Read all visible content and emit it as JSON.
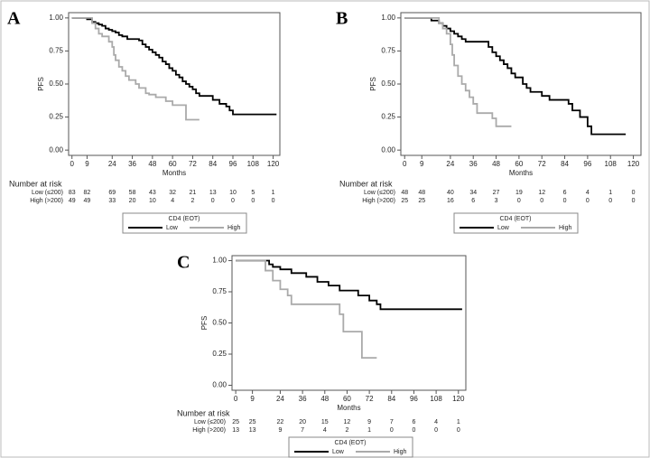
{
  "chart_data": [
    {
      "type": "line",
      "step": true,
      "panel_label": "A",
      "ylabel": "PFS",
      "xlabel": "Months",
      "xlim": [
        -2,
        124
      ],
      "ylim": [
        -0.04,
        1.04
      ],
      "xticks": [
        0,
        9,
        24,
        36,
        48,
        60,
        72,
        84,
        96,
        108,
        120
      ],
      "yticks": [
        {
          "value": 0,
          "label": "0.00"
        },
        {
          "value": 0.25,
          "label": "0.25"
        },
        {
          "value": 0.5,
          "label": "0.50"
        },
        {
          "value": 0.75,
          "label": "0.75"
        },
        {
          "value": 1,
          "label": "1.00"
        }
      ],
      "legend_title": "CD4 (EOT)",
      "series": [
        {
          "name": "Low",
          "color": "#000000",
          "x": [
            0,
            9,
            12,
            14,
            16,
            18,
            20,
            22,
            24,
            26,
            28,
            30,
            33,
            40,
            42,
            44,
            46,
            48,
            50,
            52,
            54,
            56,
            58,
            60,
            62,
            64,
            66,
            68,
            70,
            72,
            74,
            76,
            84,
            88,
            92,
            94,
            96,
            122
          ],
          "values": [
            1,
            0.99,
            0.97,
            0.96,
            0.95,
            0.94,
            0.92,
            0.91,
            0.9,
            0.89,
            0.87,
            0.86,
            0.84,
            0.83,
            0.8,
            0.78,
            0.76,
            0.74,
            0.72,
            0.7,
            0.67,
            0.65,
            0.62,
            0.6,
            0.57,
            0.55,
            0.52,
            0.5,
            0.48,
            0.46,
            0.43,
            0.41,
            0.38,
            0.35,
            0.33,
            0.3,
            0.27,
            0.27
          ]
        },
        {
          "name": "High",
          "color": "#aaaaaa",
          "x": [
            0,
            12,
            14,
            16,
            18,
            22,
            24,
            25,
            26,
            28,
            30,
            32,
            34,
            38,
            40,
            44,
            46,
            50,
            56,
            60,
            66,
            68,
            76
          ],
          "values": [
            1,
            0.96,
            0.92,
            0.88,
            0.86,
            0.82,
            0.78,
            0.72,
            0.68,
            0.63,
            0.6,
            0.56,
            0.53,
            0.5,
            0.47,
            0.43,
            0.42,
            0.4,
            0.37,
            0.34,
            0.34,
            0.23,
            0.23
          ]
        }
      ],
      "risk_table": {
        "title": "Number at risk",
        "rows": [
          {
            "label": "Low (≤200)",
            "values": [
              83,
              82,
              69,
              58,
              43,
              32,
              21,
              13,
              10,
              5,
              1
            ]
          },
          {
            "label": "High (>200)",
            "values": [
              49,
              49,
              33,
              20,
              10,
              4,
              2,
              0,
              0,
              0,
              0
            ]
          }
        ]
      }
    },
    {
      "type": "line",
      "step": true,
      "panel_label": "B",
      "ylabel": "PFS",
      "xlabel": "Months",
      "xlim": [
        -2,
        124
      ],
      "ylim": [
        -0.04,
        1.04
      ],
      "xticks": [
        0,
        9,
        24,
        36,
        48,
        60,
        72,
        84,
        96,
        108,
        120
      ],
      "yticks": [
        {
          "value": 0,
          "label": "0.00"
        },
        {
          "value": 0.25,
          "label": "0.25"
        },
        {
          "value": 0.5,
          "label": "0.50"
        },
        {
          "value": 0.75,
          "label": "0.75"
        },
        {
          "value": 1,
          "label": "1.00"
        }
      ],
      "legend_title": "CD4 (EOT)",
      "series": [
        {
          "name": "Low",
          "color": "#000000",
          "x": [
            0,
            14,
            18,
            20,
            22,
            24,
            26,
            28,
            30,
            32,
            44,
            46,
            48,
            50,
            52,
            54,
            56,
            58,
            62,
            64,
            66,
            72,
            76,
            86,
            88,
            92,
            96,
            98,
            116
          ],
          "values": [
            1,
            0.98,
            0.96,
            0.94,
            0.92,
            0.9,
            0.88,
            0.86,
            0.84,
            0.82,
            0.78,
            0.74,
            0.71,
            0.68,
            0.65,
            0.62,
            0.58,
            0.55,
            0.5,
            0.47,
            0.44,
            0.41,
            0.38,
            0.35,
            0.3,
            0.25,
            0.18,
            0.12,
            0.12
          ]
        },
        {
          "name": "High",
          "color": "#aaaaaa",
          "x": [
            0,
            18,
            20,
            22,
            24,
            25,
            26,
            28,
            30,
            32,
            34,
            36,
            38,
            46,
            48,
            56
          ],
          "values": [
            1,
            0.96,
            0.92,
            0.88,
            0.8,
            0.72,
            0.64,
            0.56,
            0.5,
            0.45,
            0.4,
            0.35,
            0.28,
            0.24,
            0.18,
            0.18
          ]
        }
      ],
      "risk_table": {
        "title": "Number at risk",
        "rows": [
          {
            "label": "Low (≤200)",
            "values": [
              48,
              48,
              40,
              34,
              27,
              19,
              12,
              6,
              4,
              1,
              0
            ]
          },
          {
            "label": "High (>200)",
            "values": [
              25,
              25,
              16,
              6,
              3,
              0,
              0,
              0,
              0,
              0,
              0
            ]
          }
        ]
      }
    },
    {
      "type": "line",
      "step": true,
      "panel_label": "C",
      "ylabel": "PFS",
      "xlabel": "Months",
      "xlim": [
        -2,
        124
      ],
      "ylim": [
        -0.04,
        1.04
      ],
      "xticks": [
        0,
        9,
        24,
        36,
        48,
        60,
        72,
        84,
        96,
        108,
        120
      ],
      "yticks": [
        {
          "value": 0,
          "label": "0.00"
        },
        {
          "value": 0.25,
          "label": "0.25"
        },
        {
          "value": 0.5,
          "label": "0.50"
        },
        {
          "value": 0.75,
          "label": "0.75"
        },
        {
          "value": 1,
          "label": "1.00"
        }
      ],
      "legend_title": "CD4 (EOT)",
      "series": [
        {
          "name": "Low",
          "color": "#000000",
          "x": [
            0,
            18,
            20,
            24,
            30,
            38,
            44,
            50,
            56,
            66,
            72,
            76,
            78,
            122
          ],
          "values": [
            1,
            0.97,
            0.95,
            0.93,
            0.9,
            0.87,
            0.83,
            0.8,
            0.76,
            0.72,
            0.68,
            0.65,
            0.61,
            0.61
          ]
        },
        {
          "name": "High",
          "color": "#aaaaaa",
          "x": [
            0,
            16,
            20,
            24,
            28,
            30,
            52,
            56,
            58,
            66,
            68,
            76
          ],
          "values": [
            1,
            0.92,
            0.84,
            0.77,
            0.72,
            0.65,
            0.65,
            0.57,
            0.43,
            0.43,
            0.22,
            0.22
          ]
        }
      ],
      "risk_table": {
        "title": "Number at risk",
        "rows": [
          {
            "label": "Low (≤200)",
            "values": [
              25,
              25,
              22,
              20,
              15,
              12,
              9,
              7,
              6,
              4,
              1
            ]
          },
          {
            "label": "High (>200)",
            "values": [
              13,
              13,
              9,
              7,
              4,
              2,
              1,
              0,
              0,
              0,
              0
            ]
          }
        ]
      }
    }
  ]
}
